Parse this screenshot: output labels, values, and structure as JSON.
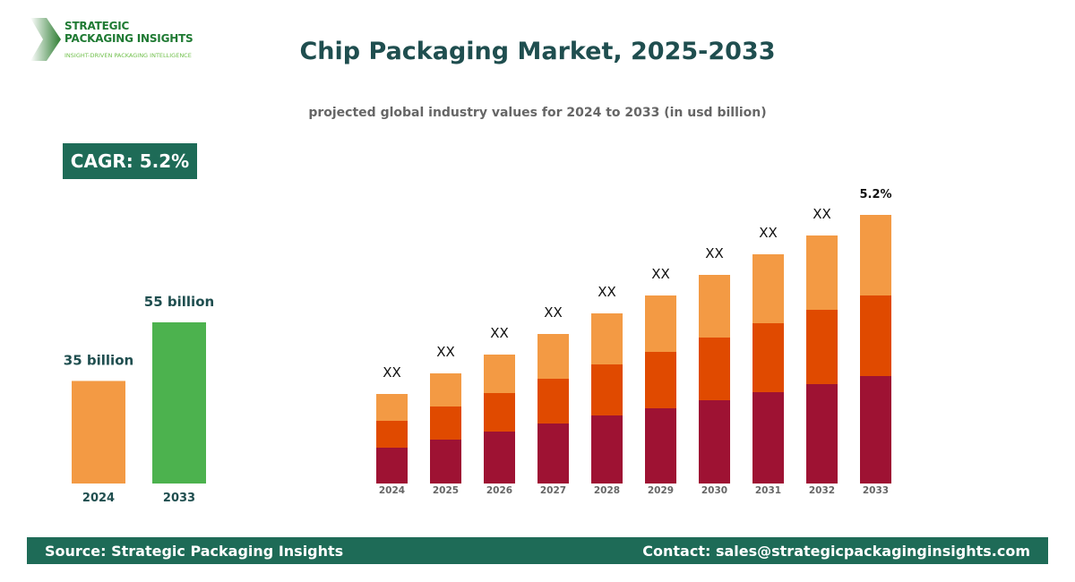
{
  "logo": {
    "line1": "STRATEGIC",
    "line2": "PACKAGING INSIGHTS",
    "tagline": "INSIGHT-DRIVEN PACKAGING INTELLIGENCE"
  },
  "title": "Chip Packaging Market, 2025-2033",
  "subtitle": "projected global industry values for 2024 to 2033 (in usd billion)",
  "cagr_badge": "CAGR: 5.2%",
  "footer": {
    "source": "Source: Strategic Packaging Insights",
    "contact": "Contact: sales@strategicpackaginginsights.com"
  },
  "chart_data": [
    {
      "type": "bar",
      "categories": [
        "2024",
        "2033"
      ],
      "values": [
        35,
        55
      ],
      "data_labels": [
        "35 billion",
        "55 billion"
      ],
      "colors": [
        "#f39a44",
        "#4cb24e"
      ],
      "grid": false
    },
    {
      "type": "stacked-bar",
      "categories": [
        "2024",
        "2025",
        "2026",
        "2027",
        "2028",
        "2029",
        "2030",
        "2031",
        "2032",
        "2033"
      ],
      "series": [
        {
          "values": [
            40,
            49,
            58,
            67,
            76,
            84,
            93,
            102,
            111,
            120
          ],
          "color": "#9e1233"
        },
        {
          "values": [
            30,
            37,
            43,
            50,
            57,
            63,
            70,
            77,
            83,
            90
          ],
          "color": "#e04a00"
        },
        {
          "values": [
            30,
            37,
            43,
            50,
            57,
            63,
            70,
            77,
            83,
            90
          ],
          "color": "#f39a44"
        }
      ],
      "data_labels": [
        "XX",
        "XX",
        "XX",
        "XX",
        "XX",
        "XX",
        "XX",
        "XX",
        "XX",
        "5.2%"
      ],
      "grid": false,
      "axes_visible": false
    }
  ]
}
